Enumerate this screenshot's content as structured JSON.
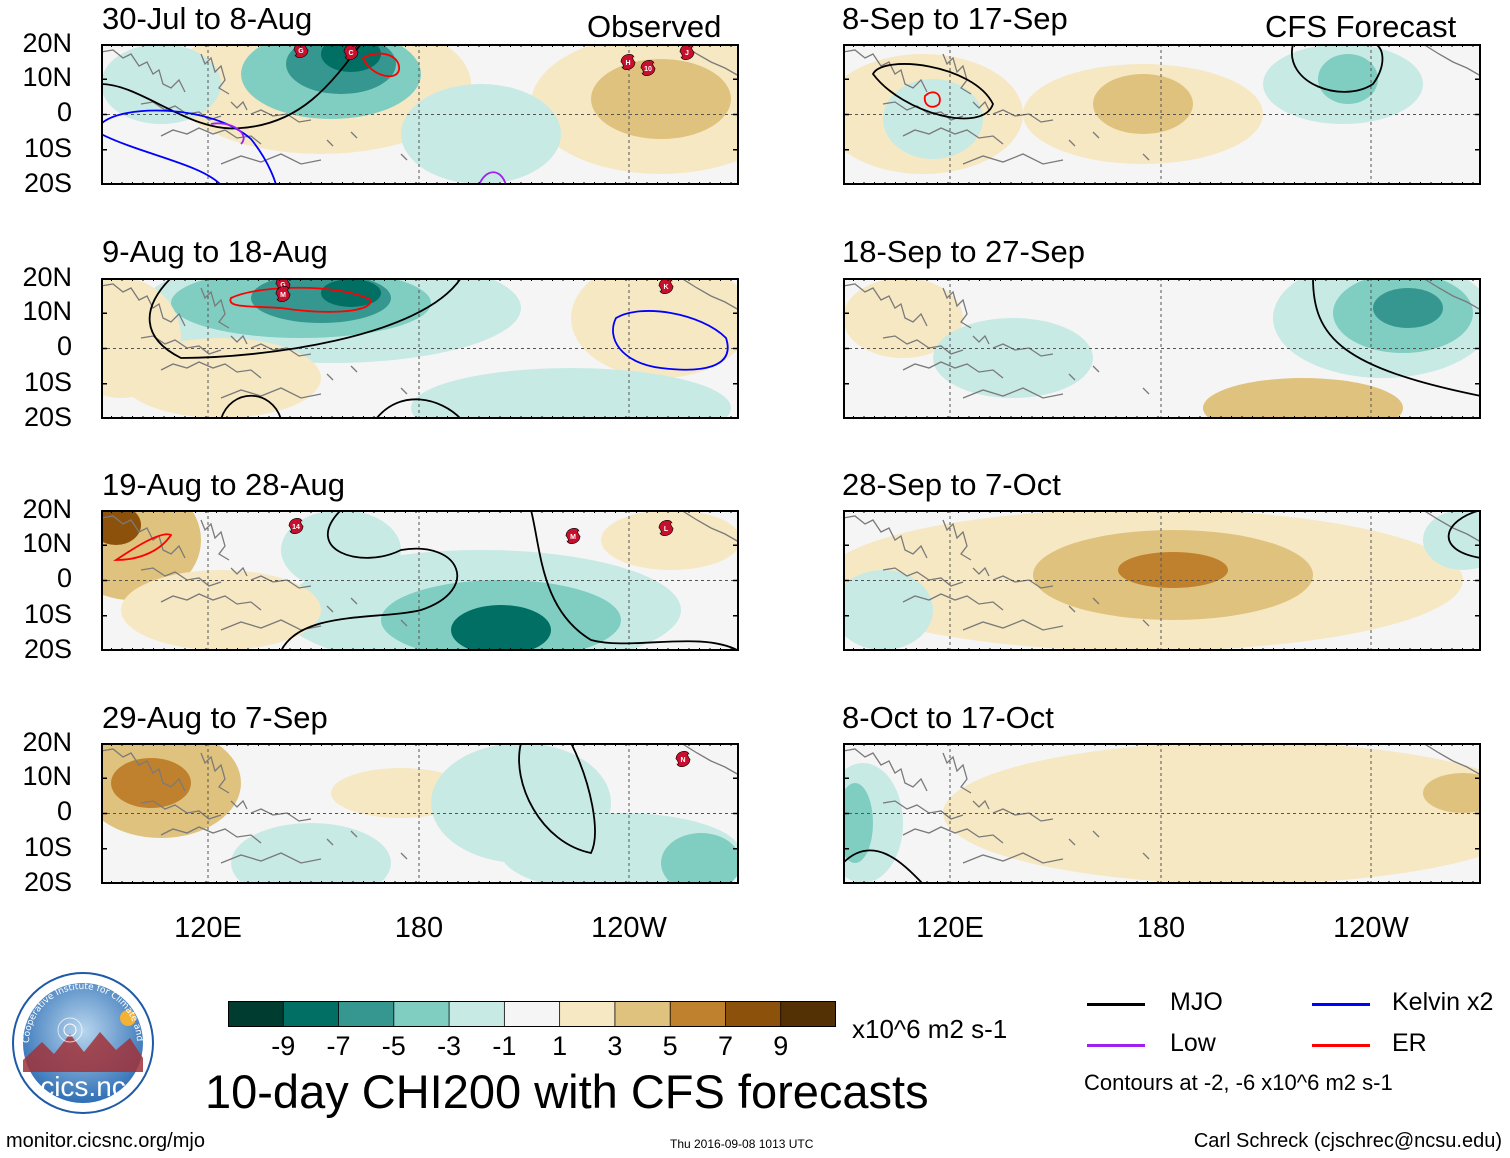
{
  "header": {
    "observed_label": "Observed",
    "forecast_label": "CFS Forecast"
  },
  "axes": {
    "lat_labels": [
      "20N",
      "10N",
      "0",
      "10S",
      "20S"
    ],
    "lon_labels": [
      "120E",
      "180",
      "120W"
    ]
  },
  "chart_data": [
    {
      "type": "heatmap",
      "column": "Observed",
      "title": "30-Jul to 8-Aug",
      "ylim": [
        "20S",
        "20N"
      ],
      "anomalies": [
        {
          "value": -5,
          "label": "Western Pacific ~160E, 15N"
        },
        {
          "value": 3,
          "label": "Eastern Pacific ~130W"
        }
      ],
      "contours": [
        "MJO",
        "Kelvin x2",
        "Low",
        "ER"
      ],
      "storm_markers": [
        "G",
        "C",
        "H",
        "10",
        "J"
      ]
    },
    {
      "type": "heatmap",
      "column": "Observed",
      "title": "9-Aug to 18-Aug",
      "ylim": [
        "20S",
        "20N"
      ],
      "anomalies": [
        {
          "value": -7,
          "label": "Western Pacific ~155E, 15N"
        },
        {
          "value": 3,
          "label": "Eastern Pacific ~125W"
        }
      ],
      "contours": [
        "MJO",
        "Kelvin x2",
        "ER"
      ],
      "storm_markers": [
        "G",
        "M",
        "K"
      ]
    },
    {
      "type": "heatmap",
      "column": "Observed",
      "title": "19-Aug to 28-Aug",
      "ylim": [
        "20S",
        "20N"
      ],
      "anomalies": [
        {
          "value": 7,
          "label": "Indochina ~100E, 15N"
        },
        {
          "value": -7,
          "label": "South Pacific ~165W, 15S"
        }
      ],
      "contours": [
        "MJO",
        "ER"
      ],
      "storm_markers": [
        "14",
        "M",
        "L"
      ]
    },
    {
      "type": "heatmap",
      "column": "Observed",
      "title": "29-Aug to 7-Sep",
      "ylim": [
        "20S",
        "20N"
      ],
      "anomalies": [
        {
          "value": 5,
          "label": "Indochina ~100E, 10N"
        },
        {
          "value": -3,
          "label": "Eastern Pacific ~125W"
        }
      ],
      "contours": [
        "MJO"
      ],
      "storm_markers": [
        "N"
      ]
    },
    {
      "type": "heatmap",
      "column": "CFS Forecast",
      "title": "8-Sep to 17-Sep",
      "ylim": [
        "20S",
        "20N"
      ],
      "anomalies": [
        {
          "value": -5,
          "label": "Eastern Pacific ~125W, 12N"
        },
        {
          "value": 3,
          "label": "Central Pacific"
        }
      ],
      "contours": [
        "MJO",
        "ER"
      ]
    },
    {
      "type": "heatmap",
      "column": "CFS Forecast",
      "title": "18-Sep to 27-Sep",
      "ylim": [
        "20S",
        "20N"
      ],
      "anomalies": [
        {
          "value": -7,
          "label": "Eastern Pacific ~120W, 10N"
        },
        {
          "value": 3,
          "label": "Indochina"
        }
      ],
      "contours": [
        "MJO"
      ]
    },
    {
      "type": "heatmap",
      "column": "CFS Forecast",
      "title": "28-Sep to 7-Oct",
      "ylim": [
        "20S",
        "20N"
      ],
      "anomalies": [
        {
          "value": 5,
          "label": "Central Pacific ~180, 5N"
        },
        {
          "value": -3,
          "label": "Far Eastern Pacific"
        }
      ],
      "contours": [
        "MJO"
      ]
    },
    {
      "type": "heatmap",
      "column": "CFS Forecast",
      "title": "8-Oct to 17-Oct",
      "ylim": [
        "20S",
        "20N"
      ],
      "anomalies": [
        {
          "value": 1,
          "label": "Pacific basin"
        },
        {
          "value": -3,
          "label": "Indian Ocean ~95E"
        }
      ],
      "contours": [
        "MJO"
      ]
    }
  ],
  "colorbar": {
    "ticks": [
      "-9",
      "-7",
      "-5",
      "-3",
      "-1",
      "1",
      "3",
      "5",
      "7",
      "9"
    ],
    "colors": [
      "#013c30",
      "#016f64",
      "#35978f",
      "#80cdc1",
      "#c7eae5",
      "#f5f5f5",
      "#f6e8c3",
      "#dfc27d",
      "#bf812d",
      "#8c510a",
      "#543005"
    ],
    "units": "x10^6 m2 s-1"
  },
  "main_title": "10-day CHI200 with CFS forecasts",
  "legend": {
    "items": [
      {
        "label": "MJO",
        "color": "#000000"
      },
      {
        "label": "Kelvin x2",
        "color": "#0000ff"
      },
      {
        "label": "Low",
        "color": "#a020f0"
      },
      {
        "label": "ER",
        "color": "#ff0000"
      }
    ],
    "note": "Contours at -2, -6 x10^6 m2 s-1"
  },
  "footer": {
    "url": "monitor.cicsnc.org/mjo",
    "timestamp": "Thu 2016-09-08 1013 UTC",
    "credit": "Carl Schreck (cjschrec@ncsu.edu)"
  },
  "logo": {
    "name": "cics.nc",
    "ring_text": "Cooperative Institute for Climate and Satellites"
  }
}
